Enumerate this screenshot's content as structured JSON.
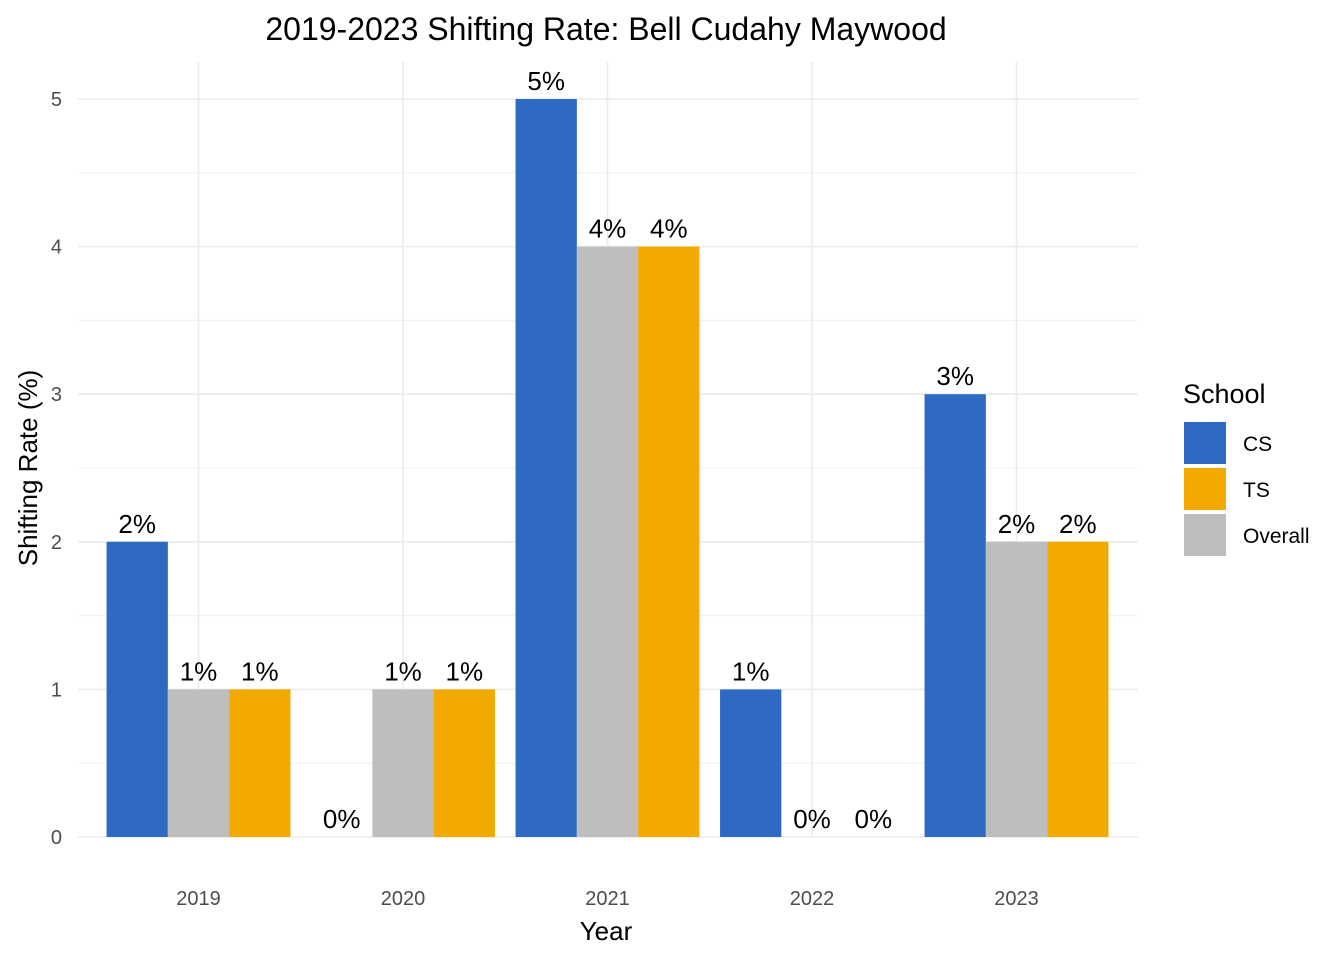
{
  "chart_data": {
    "type": "bar",
    "title": "2019-2023 Shifting Rate: Bell Cudahy Maywood",
    "xlabel": "Year",
    "ylabel": "Shifting Rate (%)",
    "categories": [
      "2019",
      "2020",
      "2021",
      "2022",
      "2023"
    ],
    "ylim": [
      0,
      5
    ],
    "yticks": [
      "0",
      "1",
      "2",
      "3",
      "4",
      "5"
    ],
    "grid": true,
    "series": [
      {
        "name": "CS",
        "color": "#2e6ac4",
        "values": [
          2,
          0,
          5,
          1,
          3
        ],
        "labels": [
          "2%",
          "0%",
          "5%",
          "1%",
          "3%"
        ]
      },
      {
        "name": "Overall",
        "color": "#bebebe",
        "values": [
          1,
          1,
          4,
          0,
          2
        ],
        "labels": [
          "1%",
          "1%",
          "4%",
          "0%",
          "2%"
        ]
      },
      {
        "name": "TS",
        "color": "#f2a900",
        "values": [
          1,
          1,
          4,
          0,
          2
        ],
        "labels": [
          "1%",
          "1%",
          "4%",
          "0%",
          "2%"
        ]
      }
    ],
    "legend": {
      "title": "School",
      "position": "right",
      "entries": [
        {
          "name": "CS",
          "color": "#2e6ac4"
        },
        {
          "name": "TS",
          "color": "#f2a900"
        },
        {
          "name": "Overall",
          "color": "#bebebe"
        }
      ]
    }
  }
}
